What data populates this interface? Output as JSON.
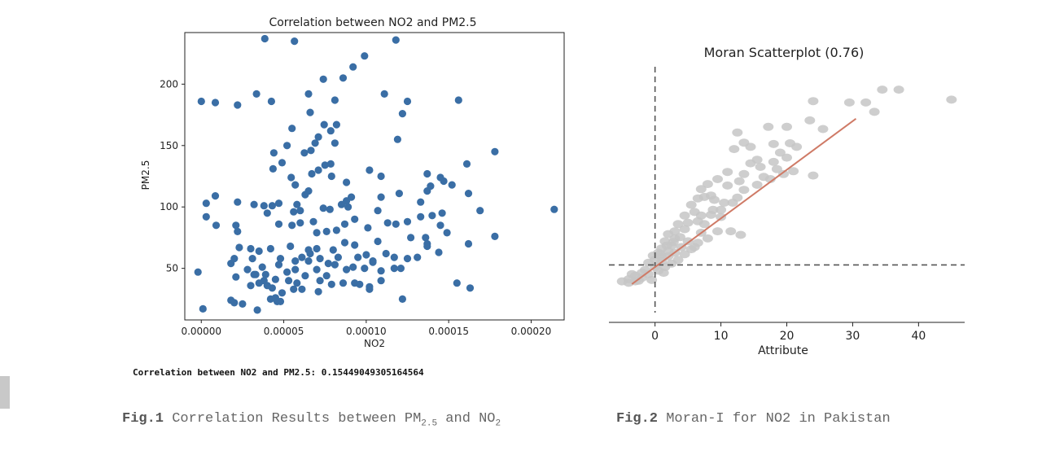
{
  "chart_data": [
    {
      "type": "scatter",
      "title": "Correlation between NO2 and PM2.5",
      "xlabel": "NO2",
      "ylabel": "PM2.5",
      "xlim": [
        -1e-05,
        0.00022
      ],
      "ylim": [
        8,
        242
      ],
      "xticks": [
        "0.00000",
        "0.00005",
        "0.00010",
        "0.00015",
        "0.00020"
      ],
      "xtick_values": [
        0,
        5e-05,
        0.0001,
        0.00015,
        0.0002
      ],
      "yticks": [
        "50",
        "100",
        "150",
        "200"
      ],
      "ytick_values": [
        50,
        100,
        150,
        200
      ],
      "color": "#3a6ea5",
      "points": [
        [
          3.85e-05,
          237
        ],
        [
          5.65e-05,
          235
        ],
        [
          0.000118,
          236
        ],
        [
          9.9e-05,
          223
        ],
        [
          9.2e-05,
          214
        ],
        [
          8.6e-05,
          205
        ],
        [
          7.4e-05,
          204
        ],
        [
          6.5e-05,
          192
        ],
        [
          3.35e-05,
          192
        ],
        [
          0.000111,
          192
        ],
        [
          0.0,
          186
        ],
        [
          8.5e-06,
          185
        ],
        [
          2.2e-05,
          183
        ],
        [
          4.25e-05,
          186
        ],
        [
          8.1e-05,
          187
        ],
        [
          0.000125,
          186
        ],
        [
          0.000156,
          187
        ],
        [
          0.000122,
          176
        ],
        [
          6.6e-05,
          177
        ],
        [
          8.2e-05,
          167
        ],
        [
          7.45e-05,
          167
        ],
        [
          7.85e-05,
          162
        ],
        [
          5.5e-05,
          164
        ],
        [
          0.000119,
          155
        ],
        [
          7.1e-05,
          157
        ],
        [
          6.9e-05,
          152
        ],
        [
          8.1e-05,
          152
        ],
        [
          6.65e-05,
          146
        ],
        [
          6.25e-05,
          144
        ],
        [
          5.2e-05,
          150
        ],
        [
          4.4e-05,
          144
        ],
        [
          0.000178,
          145
        ],
        [
          7.85e-05,
          135
        ],
        [
          4.9e-05,
          136
        ],
        [
          7.5e-05,
          134
        ],
        [
          0.000161,
          135
        ],
        [
          0.000102,
          130
        ],
        [
          7.1e-05,
          130
        ],
        [
          7.9e-05,
          125
        ],
        [
          6.7e-05,
          127
        ],
        [
          0.000137,
          127
        ],
        [
          4.35e-05,
          131
        ],
        [
          8.8e-05,
          120
        ],
        [
          5.45e-05,
          124
        ],
        [
          0.000109,
          125
        ],
        [
          0.000145,
          124
        ],
        [
          0.000139,
          117
        ],
        [
          0.000147,
          121
        ],
        [
          0.000152,
          118
        ],
        [
          0.000137,
          113
        ],
        [
          6.5e-05,
          113
        ],
        [
          5.7e-05,
          118
        ],
        [
          6.3e-05,
          110
        ],
        [
          0.00012,
          111
        ],
        [
          0.000162,
          111
        ],
        [
          9.1e-05,
          108
        ],
        [
          0.000109,
          108
        ],
        [
          8.8e-05,
          105
        ],
        [
          3.2e-05,
          102
        ],
        [
          2.2e-05,
          104
        ],
        [
          3e-06,
          103
        ],
        [
          8.5e-06,
          109
        ],
        [
          0.000133,
          104
        ],
        [
          5.8e-05,
          102
        ],
        [
          4.3e-05,
          101
        ],
        [
          0.000107,
          97
        ],
        [
          7.8e-05,
          98
        ],
        [
          8.9e-05,
          100
        ],
        [
          5.6e-05,
          96
        ],
        [
          6e-05,
          97
        ],
        [
          7.4e-05,
          99
        ],
        [
          8.5e-05,
          102
        ],
        [
          0.000146,
          95
        ],
        [
          0.000169,
          97
        ],
        [
          0.000214,
          98
        ],
        [
          4e-05,
          95
        ],
        [
          3.8e-05,
          101
        ],
        [
          4.7e-05,
          103
        ],
        [
          3e-06,
          92
        ],
        [
          9e-06,
          85
        ],
        [
          2.1e-05,
          85
        ],
        [
          2.2e-05,
          80
        ],
        [
          4.7e-05,
          86
        ],
        [
          5.5e-05,
          85
        ],
        [
          6e-05,
          87
        ],
        [
          6.8e-05,
          88
        ],
        [
          7e-05,
          79
        ],
        [
          7.6e-05,
          80
        ],
        [
          8.2e-05,
          81
        ],
        [
          8.7e-05,
          86
        ],
        [
          9.3e-05,
          90
        ],
        [
          0.000101,
          83
        ],
        [
          0.000113,
          87
        ],
        [
          0.000118,
          86
        ],
        [
          0.000125,
          88
        ],
        [
          0.000133,
          92
        ],
        [
          0.00014,
          93
        ],
        [
          0.000145,
          85
        ],
        [
          0.000149,
          79
        ],
        [
          0.000127,
          75
        ],
        [
          0.000136,
          75
        ],
        [
          0.000162,
          70
        ],
        [
          0.000178,
          76
        ],
        [
          0.000137,
          70
        ],
        [
          0.000137,
          68
        ],
        [
          0.000107,
          72
        ],
        [
          8.7e-05,
          71
        ],
        [
          9.3e-05,
          69
        ],
        [
          8e-05,
          65
        ],
        [
          7e-05,
          66
        ],
        [
          6.5e-05,
          65
        ],
        [
          5.4e-05,
          68
        ],
        [
          4.2e-05,
          66
        ],
        [
          3.5e-05,
          64
        ],
        [
          3e-05,
          66
        ],
        [
          2.3e-05,
          67
        ],
        [
          2e-05,
          58
        ],
        [
          3.1e-05,
          58
        ],
        [
          4.8e-05,
          58
        ],
        [
          5.7e-05,
          56
        ],
        [
          6.1e-05,
          59
        ],
        [
          6.6e-05,
          62
        ],
        [
          7.2e-05,
          58
        ],
        [
          7.7e-05,
          54
        ],
        [
          8.3e-05,
          59
        ],
        [
          9.5e-05,
          59
        ],
        [
          0.0001,
          61
        ],
        [
          0.000104,
          56
        ],
        [
          0.000112,
          62
        ],
        [
          0.000117,
          59
        ],
        [
          0.000125,
          58
        ],
        [
          0.000144,
          63
        ],
        [
          0.000131,
          59
        ],
        [
          1.8e-05,
          54
        ],
        [
          2.8e-05,
          49
        ],
        [
          3.7e-05,
          51
        ],
        [
          4.7e-05,
          53
        ],
        [
          5.2e-05,
          47
        ],
        [
          5.7e-05,
          49
        ],
        [
          6.5e-05,
          56
        ],
        [
          7e-05,
          49
        ],
        [
          7.6e-05,
          44
        ],
        [
          8.1e-05,
          53
        ],
        [
          8.8e-05,
          49
        ],
        [
          9.2e-05,
          51
        ],
        [
          9.9e-05,
          50
        ],
        [
          0.000104,
          55
        ],
        [
          0.000109,
          48
        ],
        [
          0.000117,
          50
        ],
        [
          0.000121,
          50
        ],
        [
          -2e-06,
          47
        ],
        [
          2.1e-05,
          43
        ],
        [
          3.3e-05,
          45
        ],
        [
          3.9e-05,
          45
        ],
        [
          4.5e-05,
          41
        ],
        [
          5.3e-05,
          40
        ],
        [
          5.8e-05,
          38
        ],
        [
          6.3e-05,
          44
        ],
        [
          7.2e-05,
          40
        ],
        [
          8.6e-05,
          38
        ],
        [
          9.3e-05,
          38
        ],
        [
          9.6e-05,
          37
        ],
        [
          0.000102,
          35
        ],
        [
          0.000109,
          40
        ],
        [
          3e-05,
          36
        ],
        [
          3.5e-05,
          38
        ],
        [
          4e-05,
          36
        ],
        [
          4.3e-05,
          34
        ],
        [
          4.9e-05,
          30
        ],
        [
          5.6e-05,
          33
        ],
        [
          6.1e-05,
          33
        ],
        [
          7.1e-05,
          31
        ],
        [
          7.9e-05,
          37
        ],
        [
          0.000102,
          33
        ],
        [
          0.000155,
          38
        ],
        [
          0.000163,
          34
        ],
        [
          4.2e-05,
          25
        ],
        [
          4.5e-05,
          26
        ],
        [
          4.8e-05,
          23
        ],
        [
          2e-05,
          22
        ],
        [
          2.5e-05,
          21
        ],
        [
          1.8e-05,
          24
        ],
        [
          1e-06,
          17
        ],
        [
          3.4e-05,
          16
        ],
        [
          4.6e-05,
          23
        ],
        [
          0.000122,
          25
        ],
        [
          3.8e-05,
          40
        ],
        [
          3.2e-05,
          45
        ]
      ]
    },
    {
      "type": "scatter",
      "title": "Moran Scatterplot (0.76)",
      "xlabel": "Attribute",
      "ylabel": "",
      "xlim": [
        -7,
        47
      ],
      "ylim": [
        -4,
        29
      ],
      "xticks": [
        "0",
        "10",
        "20",
        "30",
        "40"
      ],
      "xtick_values": [
        0,
        10,
        20,
        30,
        40
      ],
      "color": "#c6c6c6",
      "regression_color": "#cf7a66",
      "regression": {
        "slope": 0.68,
        "intercept": 1.0,
        "x_range": [
          -3.5,
          30.5
        ]
      },
      "reference_lines": {
        "x": 0,
        "y": 1.3
      },
      "points": [
        [
          34.5,
          25.8
        ],
        [
          37,
          25.8
        ],
        [
          45,
          24.4
        ],
        [
          32,
          24.0
        ],
        [
          33.3,
          22.7
        ],
        [
          29.5,
          24.0
        ],
        [
          24,
          24.2
        ],
        [
          23.5,
          21.5
        ],
        [
          25.5,
          20.3
        ],
        [
          17.2,
          20.6
        ],
        [
          20,
          20.6
        ],
        [
          12.5,
          19.8
        ],
        [
          13.5,
          18.4
        ],
        [
          12,
          17.5
        ],
        [
          14.5,
          17.8
        ],
        [
          18,
          18.2
        ],
        [
          20.5,
          18.3
        ],
        [
          21.5,
          17.8
        ],
        [
          19,
          17.0
        ],
        [
          20,
          16.3
        ],
        [
          15.5,
          16.0
        ],
        [
          16,
          15.0
        ],
        [
          18.5,
          14.7
        ],
        [
          21,
          14.4
        ],
        [
          24,
          13.8
        ],
        [
          16.5,
          13.6
        ],
        [
          13.5,
          14.0
        ],
        [
          11,
          14.3
        ],
        [
          12.8,
          13.0
        ],
        [
          9.5,
          13.3
        ],
        [
          11,
          12.4
        ],
        [
          8,
          12.6
        ],
        [
          7,
          11.9
        ],
        [
          8.5,
          11.0
        ],
        [
          7.5,
          10.8
        ],
        [
          9,
          10.4
        ],
        [
          10.5,
          10.0
        ],
        [
          12.5,
          10.7
        ],
        [
          6.5,
          10.6
        ],
        [
          5.5,
          9.7
        ],
        [
          6,
          8.7
        ],
        [
          7,
          8.2
        ],
        [
          8.5,
          8.3
        ],
        [
          10,
          8.0
        ],
        [
          4.5,
          8.2
        ],
        [
          5,
          7.2
        ],
        [
          6.5,
          7.4
        ],
        [
          3.5,
          7.0
        ],
        [
          4.5,
          6.3
        ],
        [
          3,
          6.0
        ],
        [
          2,
          5.6
        ],
        [
          3,
          5.0
        ],
        [
          1.5,
          4.6
        ],
        [
          2.5,
          4.0
        ],
        [
          1,
          3.6
        ],
        [
          2,
          3.2
        ],
        [
          0.5,
          3.0
        ],
        [
          1,
          2.4
        ],
        [
          0,
          2.0
        ],
        [
          -1,
          1.6
        ],
        [
          0,
          1.0
        ],
        [
          -1.5,
          0.6
        ],
        [
          -2,
          0.2
        ],
        [
          -3,
          -0.2
        ],
        [
          -4,
          -0.7
        ],
        [
          -5,
          -1.0
        ],
        [
          -4,
          -1.2
        ],
        [
          -3,
          -1.0
        ],
        [
          -2,
          -0.5
        ],
        [
          -1,
          0.0
        ],
        [
          0.5,
          0.5
        ],
        [
          1.5,
          1.0
        ],
        [
          2.5,
          1.5
        ],
        [
          3.5,
          2.0
        ],
        [
          4.5,
          2.8
        ],
        [
          5.5,
          3.5
        ],
        [
          6.5,
          4.4
        ],
        [
          3,
          3.0
        ],
        [
          4,
          3.8
        ],
        [
          2,
          2.5
        ],
        [
          1,
          1.8
        ],
        [
          -0.5,
          -0.8
        ],
        [
          -2.5,
          -0.9
        ],
        [
          11.5,
          6.0
        ],
        [
          13,
          5.5
        ],
        [
          9.5,
          6.0
        ],
        [
          8,
          5.0
        ],
        [
          7,
          5.8
        ],
        [
          6,
          3.8
        ],
        [
          5,
          4.6
        ],
        [
          7.5,
          7.0
        ],
        [
          8.8,
          9.0
        ],
        [
          10,
          9.0
        ],
        [
          11.8,
          10.0
        ],
        [
          13.5,
          11.8
        ],
        [
          15.5,
          12.5
        ],
        [
          17.5,
          13.3
        ],
        [
          19.5,
          14.0
        ],
        [
          18,
          15.7
        ],
        [
          14.5,
          15.5
        ],
        [
          3.8,
          5.2
        ],
        [
          2.8,
          4.5
        ],
        [
          1.8,
          4.0
        ],
        [
          0.8,
          2.8
        ],
        [
          -0.3,
          2.6
        ],
        [
          1.3,
          0.2
        ],
        [
          -3.5,
          0.0
        ]
      ]
    }
  ],
  "correlation_text": "Correlation between NO2 and PM2.5: 0.15449049305164564",
  "captions": {
    "fig1_label": "Fig.1",
    "fig1_text_a": " Correlation Results between PM",
    "fig1_sub_a": "2.5",
    "fig1_text_b": " and NO",
    "fig1_sub_b": "2",
    "fig2_label": "Fig.2",
    "fig2_text": " Moran-I for NO2 in Pakistan"
  }
}
